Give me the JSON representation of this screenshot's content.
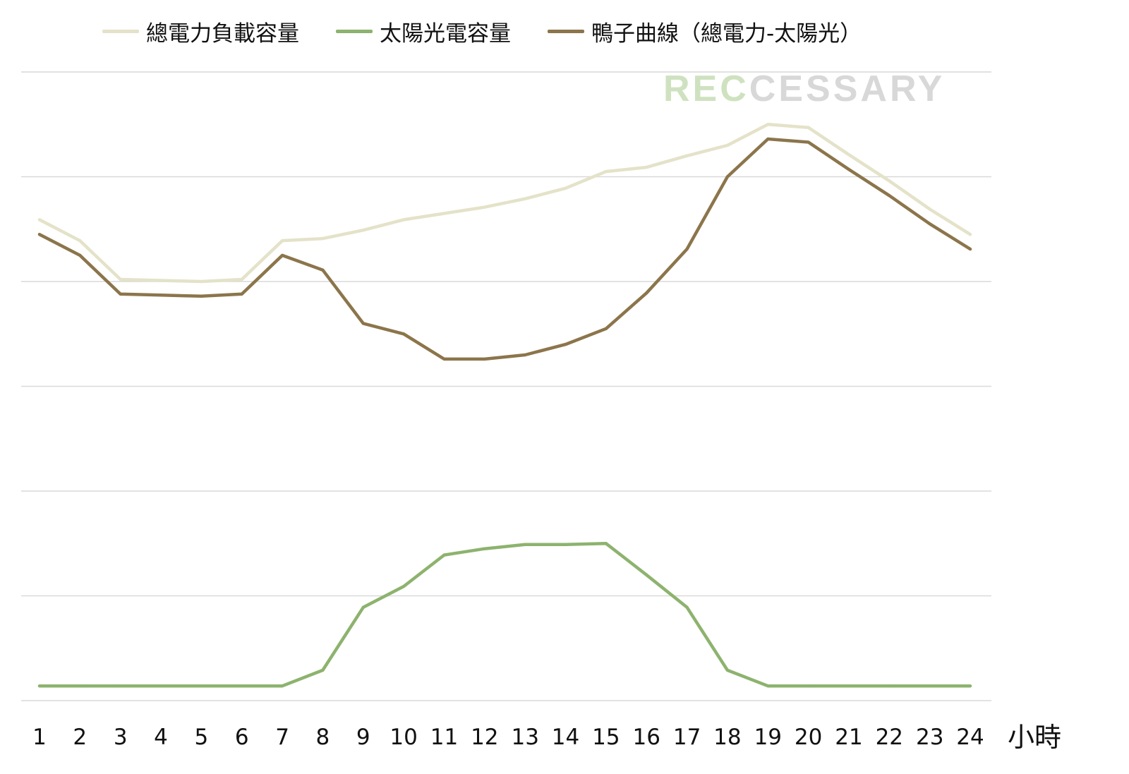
{
  "chart_data": {
    "type": "line",
    "title": "",
    "xlabel": "小時",
    "ylabel": "",
    "categories": [
      "1",
      "2",
      "3",
      "4",
      "5",
      "6",
      "7",
      "8",
      "9",
      "10",
      "11",
      "12",
      "13",
      "14",
      "15",
      "16",
      "17",
      "18",
      "19",
      "20",
      "21",
      "22",
      "23",
      "24"
    ],
    "ylim": [
      0,
      6
    ],
    "grid": true,
    "legend_position": "top",
    "series": [
      {
        "name": "總電力負載容量",
        "color": "#e4e2c8",
        "values": [
          4.59,
          4.39,
          4.02,
          4.01,
          4.0,
          4.02,
          4.39,
          4.41,
          4.49,
          4.59,
          4.65,
          4.71,
          4.79,
          4.89,
          5.05,
          5.09,
          5.2,
          5.3,
          5.5,
          5.47,
          5.21,
          4.96,
          4.69,
          4.45
        ]
      },
      {
        "name": "太陽光電容量",
        "color": "#8db36e",
        "values": [
          0.14,
          0.14,
          0.14,
          0.14,
          0.14,
          0.14,
          0.14,
          0.29,
          0.89,
          1.09,
          1.39,
          1.45,
          1.49,
          1.49,
          1.5,
          1.2,
          0.89,
          0.29,
          0.14,
          0.14,
          0.14,
          0.14,
          0.14,
          0.14
        ]
      },
      {
        "name": "鴨子曲線（總電力-太陽光）",
        "color": "#8c754b",
        "values": [
          4.45,
          4.25,
          3.88,
          3.87,
          3.86,
          3.88,
          4.25,
          4.11,
          3.6,
          3.5,
          3.26,
          3.26,
          3.3,
          3.4,
          3.55,
          3.89,
          4.31,
          5.0,
          5.36,
          5.33,
          5.07,
          4.82,
          4.55,
          4.31
        ]
      }
    ]
  },
  "legend": {
    "items": [
      {
        "label": "總電力負載容量",
        "color": "#e4e2c8"
      },
      {
        "label": "太陽光電容量",
        "color": "#8db36e"
      },
      {
        "label": "鴨子曲線（總電力-太陽光）",
        "color": "#8c754b"
      }
    ]
  },
  "watermark": {
    "part1": "REC",
    "part2": "CESSARY",
    "color1": "#cfe2c0",
    "color2": "#d8d8d8"
  }
}
